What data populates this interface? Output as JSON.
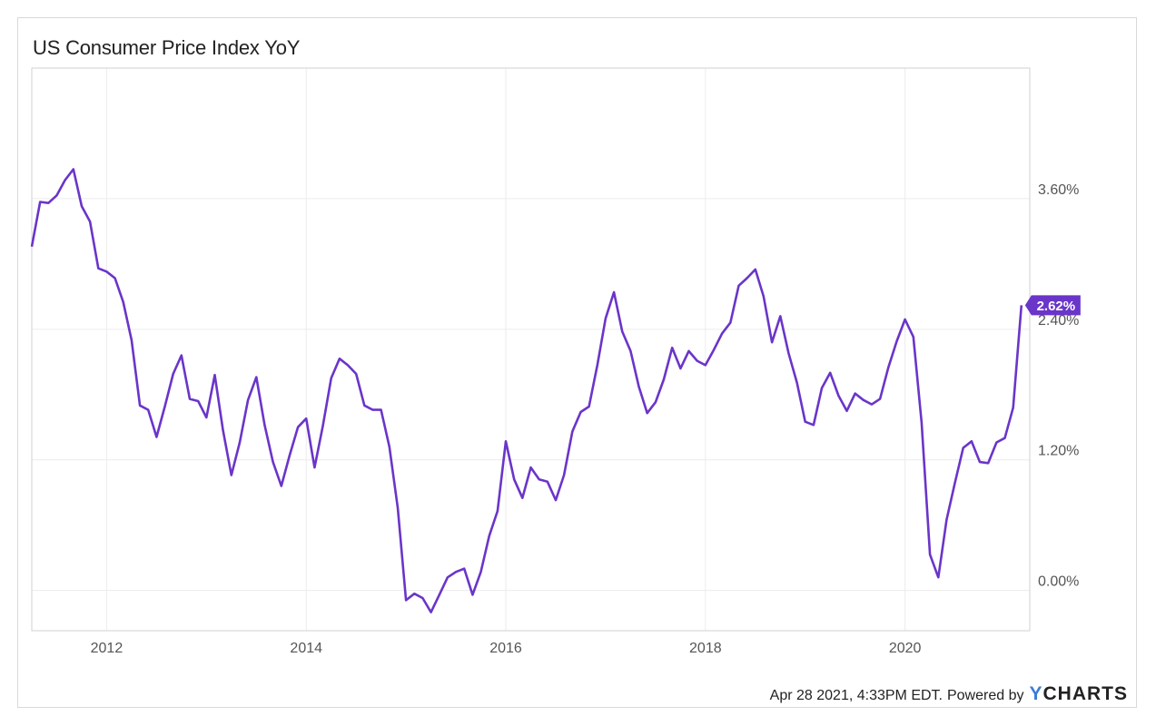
{
  "title": "US Consumer Price Index YoY",
  "footer": {
    "timestamp_text": "Apr 28 2021, 4:33PM EDT.",
    "powered_by": "Powered by",
    "brand_y": "Y",
    "brand_rest": "CHARTS"
  },
  "colors": {
    "line": "#6a35c9",
    "grid": "#ececec",
    "badge_bg": "#6a35c9",
    "badge_text": "#ffffff"
  },
  "chart_data": {
    "type": "line",
    "title": "US Consumer Price Index YoY",
    "xlabel": "",
    "ylabel": "",
    "x_ticks": [
      "2012",
      "2014",
      "2016",
      "2018",
      "2020"
    ],
    "y_ticks": [
      "0.00%",
      "1.20%",
      "2.40%",
      "3.60%"
    ],
    "ylim": [
      -0.37,
      4.8
    ],
    "xlim": [
      "2011-04",
      "2021-04"
    ],
    "grid": true,
    "y_axis_side": "right",
    "last_value_label": "2.62%",
    "series": [
      {
        "x": [
          "2011-04",
          "2011-05",
          "2011-06",
          "2011-07",
          "2011-08",
          "2011-09",
          "2011-10",
          "2011-11",
          "2011-12",
          "2012-01",
          "2012-02",
          "2012-03",
          "2012-04",
          "2012-05",
          "2012-06",
          "2012-07",
          "2012-08",
          "2012-09",
          "2012-10",
          "2012-11",
          "2012-12",
          "2013-01",
          "2013-02",
          "2013-03",
          "2013-04",
          "2013-05",
          "2013-06",
          "2013-07",
          "2013-08",
          "2013-09",
          "2013-10",
          "2013-11",
          "2013-12",
          "2014-01",
          "2014-02",
          "2014-03",
          "2014-04",
          "2014-05",
          "2014-06",
          "2014-07",
          "2014-08",
          "2014-09",
          "2014-10",
          "2014-11",
          "2014-12",
          "2015-01",
          "2015-02",
          "2015-03",
          "2015-04",
          "2015-05",
          "2015-06",
          "2015-07",
          "2015-08",
          "2015-09",
          "2015-10",
          "2015-11",
          "2015-12",
          "2016-01",
          "2016-02",
          "2016-03",
          "2016-04",
          "2016-05",
          "2016-06",
          "2016-07",
          "2016-08",
          "2016-09",
          "2016-10",
          "2016-11",
          "2016-12",
          "2017-01",
          "2017-02",
          "2017-03",
          "2017-04",
          "2017-05",
          "2017-06",
          "2017-07",
          "2017-08",
          "2017-09",
          "2017-10",
          "2017-11",
          "2017-12",
          "2018-01",
          "2018-02",
          "2018-03",
          "2018-04",
          "2018-05",
          "2018-06",
          "2018-07",
          "2018-08",
          "2018-09",
          "2018-10",
          "2018-11",
          "2018-12",
          "2019-01",
          "2019-02",
          "2019-03",
          "2019-04",
          "2019-05",
          "2019-06",
          "2019-07",
          "2019-08",
          "2019-09",
          "2019-10",
          "2019-11",
          "2019-12",
          "2020-01",
          "2020-02",
          "2020-03",
          "2020-04",
          "2020-05",
          "2020-06",
          "2020-07",
          "2020-08",
          "2020-09",
          "2020-10",
          "2020-11",
          "2020-12",
          "2021-01",
          "2021-02",
          "2021-03"
        ],
        "values": [
          3.16,
          3.57,
          3.56,
          3.63,
          3.77,
          3.87,
          3.53,
          3.39,
          2.96,
          2.93,
          2.87,
          2.65,
          2.3,
          1.7,
          1.66,
          1.41,
          1.69,
          1.99,
          2.16,
          1.76,
          1.74,
          1.59,
          1.98,
          1.47,
          1.06,
          1.36,
          1.75,
          1.96,
          1.52,
          1.18,
          0.96,
          1.24,
          1.5,
          1.58,
          1.13,
          1.51,
          1.95,
          2.13,
          2.07,
          1.99,
          1.7,
          1.66,
          1.66,
          1.32,
          0.76,
          -0.09,
          -0.03,
          -0.07,
          -0.2,
          -0.04,
          0.12,
          0.17,
          0.2,
          -0.04,
          0.17,
          0.5,
          0.73,
          1.37,
          1.02,
          0.85,
          1.13,
          1.02,
          1.0,
          0.83,
          1.06,
          1.46,
          1.64,
          1.69,
          2.07,
          2.5,
          2.74,
          2.38,
          2.2,
          1.87,
          1.63,
          1.73,
          1.94,
          2.23,
          2.04,
          2.2,
          2.11,
          2.07,
          2.21,
          2.36,
          2.46,
          2.8,
          2.87,
          2.95,
          2.7,
          2.28,
          2.52,
          2.18,
          1.91,
          1.55,
          1.52,
          1.86,
          2.0,
          1.79,
          1.65,
          1.81,
          1.75,
          1.71,
          1.76,
          2.05,
          2.29,
          2.49,
          2.33,
          1.54,
          0.33,
          0.12,
          0.65,
          0.99,
          1.31,
          1.37,
          1.18,
          1.17,
          1.36,
          1.4,
          1.68,
          2.62
        ]
      }
    ]
  }
}
